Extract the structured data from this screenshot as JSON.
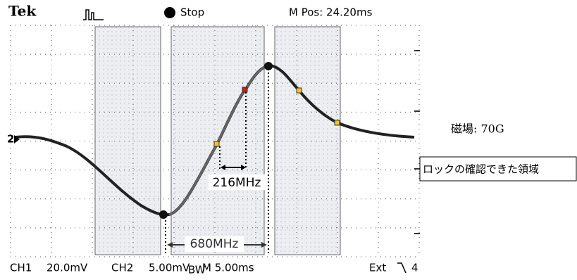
{
  "header": {
    "brand": "Tek",
    "state": "Stop",
    "position": "M Pos: 24.20ms"
  },
  "marker": "2",
  "annotations": {
    "inner_span": "216MHz",
    "outer_span": "680MHz",
    "field": "磁場: 70G",
    "lock_region": "ロックの確認できた領域"
  },
  "footer": {
    "ch1": "CH1",
    "ch1_scale": "20.0mV",
    "ch2": "CH2",
    "ch2_scale": "5.00mV",
    "bw": "BW",
    "timebase": "M 5.00ms",
    "trigger": "Ext",
    "trigger_level": "4"
  }
}
